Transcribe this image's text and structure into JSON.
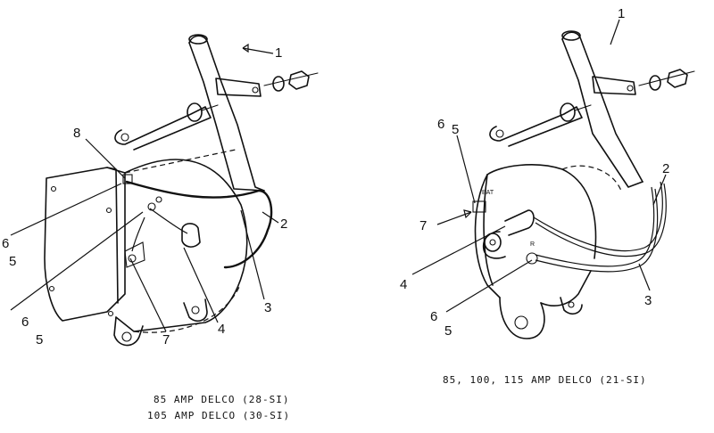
{
  "left_figure": {
    "callouts": [
      "1",
      "8",
      "2",
      "6",
      "5",
      "3",
      "6",
      "5",
      "7",
      "4"
    ],
    "caption_lines": [
      "85 AMP DELCO (28-SI)",
      "105 AMP DELCO (30-SI)"
    ]
  },
  "right_figure": {
    "callouts": [
      "1",
      "6",
      "5",
      "2",
      "7",
      "4",
      "3",
      "6",
      "5"
    ],
    "terminal_labels": [
      "BAT",
      "R"
    ],
    "caption_lines": [
      "85, 100, 115 AMP DELCO (21-SI)"
    ]
  }
}
